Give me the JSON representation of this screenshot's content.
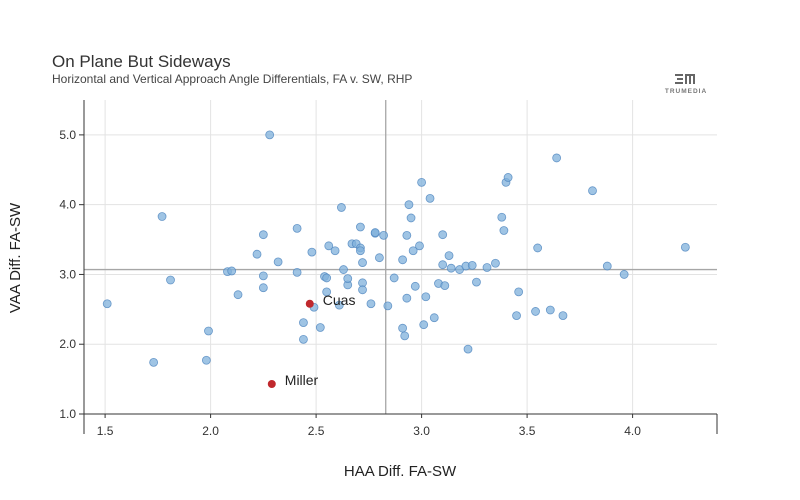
{
  "header": {
    "title": "On Plane But Sideways",
    "subtitle": "Horizontal and Vertical Approach Angle Differentials, FA v. SW, RHP"
  },
  "logo": {
    "text": "TRUMEDIA",
    "icon": "trumedia-logo-icon"
  },
  "colors": {
    "point": "#7fb0db",
    "point_stroke": "#4f86bf",
    "highlight": "#c0282d",
    "refline": "#a6a6a6",
    "grid": "#e3e3e3"
  },
  "chart_data": {
    "type": "scatter",
    "title": "On Plane But Sideways",
    "subtitle": "Horizontal and Vertical Approach Angle Differentials, FA v. SW, RHP",
    "xlabel": "HAA Diff. FA-SW",
    "ylabel": "VAA Diff. FA-SW",
    "xlim": [
      1.4,
      4.4
    ],
    "ylim": [
      1.0,
      5.5
    ],
    "xticks": [
      "1.5",
      "2.0",
      "2.5",
      "3.0",
      "3.5",
      "4.0"
    ],
    "yticks": [
      "1.0",
      "2.0",
      "3.0",
      "4.0",
      "5.0"
    ],
    "grid": true,
    "reference_lines": {
      "x": 2.83,
      "y": 3.07
    },
    "points": [
      [
        1.51,
        2.58
      ],
      [
        1.73,
        1.74
      ],
      [
        1.77,
        3.83
      ],
      [
        1.81,
        2.92
      ],
      [
        1.98,
        1.77
      ],
      [
        1.99,
        2.19
      ],
      [
        2.08,
        3.04
      ],
      [
        2.1,
        3.05
      ],
      [
        2.13,
        2.71
      ],
      [
        2.22,
        3.29
      ],
      [
        2.25,
        3.57
      ],
      [
        2.25,
        2.98
      ],
      [
        2.25,
        2.81
      ],
      [
        2.28,
        5.0
      ],
      [
        2.32,
        3.18
      ],
      [
        2.41,
        3.66
      ],
      [
        2.41,
        3.03
      ],
      [
        2.44,
        2.31
      ],
      [
        2.44,
        2.07
      ],
      [
        2.48,
        3.32
      ],
      [
        2.49,
        2.53
      ],
      [
        2.52,
        2.24
      ],
      [
        2.54,
        2.97
      ],
      [
        2.55,
        2.95
      ],
      [
        2.55,
        2.75
      ],
      [
        2.56,
        3.41
      ],
      [
        2.59,
        3.34
      ],
      [
        2.61,
        2.56
      ],
      [
        2.62,
        3.96
      ],
      [
        2.63,
        3.07
      ],
      [
        2.65,
        2.85
      ],
      [
        2.65,
        2.94
      ],
      [
        2.67,
        3.44
      ],
      [
        2.69,
        3.44
      ],
      [
        2.71,
        3.68
      ],
      [
        2.71,
        3.38
      ],
      [
        2.71,
        3.34
      ],
      [
        2.72,
        3.17
      ],
      [
        2.72,
        2.88
      ],
      [
        2.72,
        2.78
      ],
      [
        2.76,
        2.58
      ],
      [
        2.78,
        3.59
      ],
      [
        2.78,
        3.6
      ],
      [
        2.8,
        3.24
      ],
      [
        2.82,
        3.56
      ],
      [
        2.84,
        2.55
      ],
      [
        2.87,
        2.95
      ],
      [
        2.91,
        2.23
      ],
      [
        2.91,
        3.21
      ],
      [
        2.92,
        2.12
      ],
      [
        2.93,
        3.56
      ],
      [
        2.93,
        2.66
      ],
      [
        2.94,
        4.0
      ],
      [
        2.95,
        3.81
      ],
      [
        2.96,
        3.34
      ],
      [
        2.97,
        2.83
      ],
      [
        2.99,
        3.41
      ],
      [
        3.0,
        4.32
      ],
      [
        3.01,
        2.28
      ],
      [
        3.02,
        2.68
      ],
      [
        3.04,
        4.09
      ],
      [
        3.06,
        2.38
      ],
      [
        3.08,
        2.87
      ],
      [
        3.1,
        3.14
      ],
      [
        3.1,
        3.57
      ],
      [
        3.11,
        2.84
      ],
      [
        3.13,
        3.27
      ],
      [
        3.14,
        3.09
      ],
      [
        3.18,
        3.07
      ],
      [
        3.21,
        3.12
      ],
      [
        3.22,
        1.93
      ],
      [
        3.24,
        3.13
      ],
      [
        3.26,
        2.89
      ],
      [
        3.31,
        3.1
      ],
      [
        3.35,
        3.16
      ],
      [
        3.38,
        3.82
      ],
      [
        3.39,
        3.63
      ],
      [
        3.4,
        4.32
      ],
      [
        3.41,
        4.39
      ],
      [
        3.45,
        2.41
      ],
      [
        3.46,
        2.75
      ],
      [
        3.54,
        2.47
      ],
      [
        3.55,
        3.38
      ],
      [
        3.61,
        2.49
      ],
      [
        3.64,
        4.67
      ],
      [
        3.67,
        2.41
      ],
      [
        3.81,
        4.2
      ],
      [
        3.88,
        3.12
      ],
      [
        3.96,
        3.0
      ],
      [
        4.25,
        3.39
      ]
    ],
    "highlighted": [
      {
        "name": "Cuas",
        "x": 2.47,
        "y": 2.58
      },
      {
        "name": "Miller",
        "x": 2.29,
        "y": 1.43
      }
    ]
  }
}
